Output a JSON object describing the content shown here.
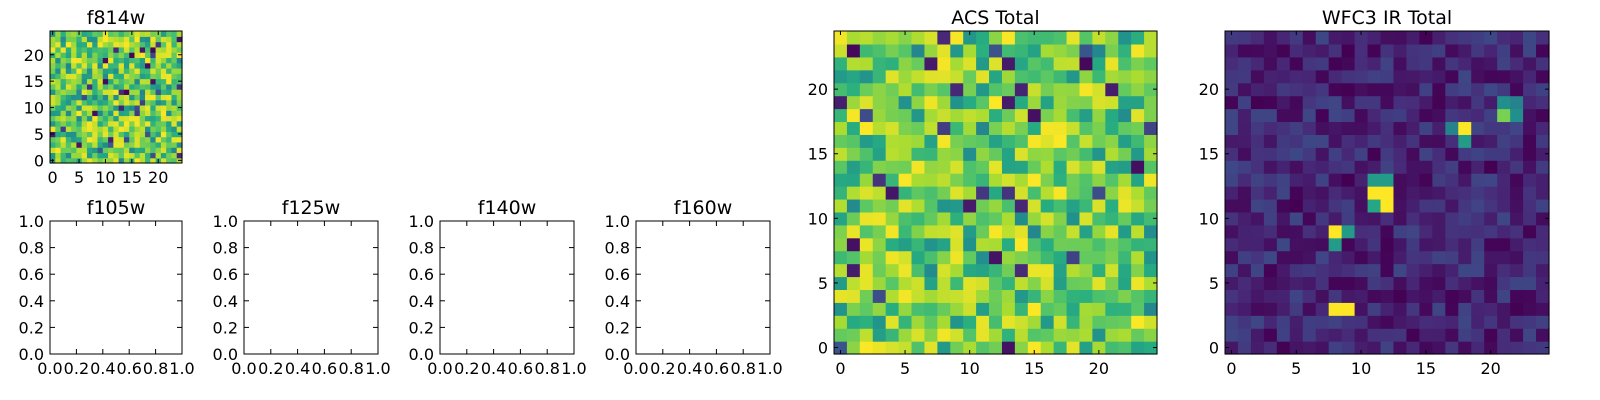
{
  "figure": {
    "background": "#ffffff",
    "colormap": "viridis"
  },
  "chart_data": [
    {
      "id": "f814w",
      "type": "heatmap",
      "title": "f814w",
      "grid_size": 25,
      "color_range": [
        0,
        1
      ],
      "x_ticks": [
        "0",
        "5",
        "10",
        "15",
        "20"
      ],
      "x_tick_values": [
        0,
        5,
        10,
        15,
        20
      ],
      "y_ticks": [
        "0",
        "5",
        "10",
        "15",
        "20"
      ],
      "y_tick_values": [
        0,
        5,
        10,
        15,
        20
      ],
      "xlim": [
        -0.5,
        24.5
      ],
      "ylim": [
        -0.5,
        24.5
      ],
      "values": "random-noise",
      "seed": 814,
      "mode": "noise",
      "note": "per-pixel intensities not individually legible; approximated as uniform-random field"
    },
    {
      "id": "f105w",
      "type": "empty",
      "title": "f105w",
      "x_ticks": [
        "0.0",
        "0.2",
        "0.4",
        "0.6",
        "0.8",
        "1.0"
      ],
      "x_tick_values": [
        0,
        0.2,
        0.4,
        0.6,
        0.8,
        1.0
      ],
      "y_ticks": [
        "0.0",
        "0.2",
        "0.4",
        "0.6",
        "0.8",
        "1.0"
      ],
      "y_tick_values": [
        0,
        0.2,
        0.4,
        0.6,
        0.8,
        1.0
      ],
      "xlim": [
        0,
        1
      ],
      "ylim": [
        0,
        1
      ]
    },
    {
      "id": "f125w",
      "type": "empty",
      "title": "f125w",
      "x_ticks": [
        "0.0",
        "0.2",
        "0.4",
        "0.6",
        "0.8",
        "1.0"
      ],
      "x_tick_values": [
        0,
        0.2,
        0.4,
        0.6,
        0.8,
        1.0
      ],
      "y_ticks": [
        "0.0",
        "0.2",
        "0.4",
        "0.6",
        "0.8",
        "1.0"
      ],
      "y_tick_values": [
        0,
        0.2,
        0.4,
        0.6,
        0.8,
        1.0
      ],
      "xlim": [
        0,
        1
      ],
      "ylim": [
        0,
        1
      ]
    },
    {
      "id": "f140w",
      "type": "empty",
      "title": "f140w",
      "x_ticks": [
        "0.0",
        "0.2",
        "0.4",
        "0.6",
        "0.8",
        "1.0"
      ],
      "x_tick_values": [
        0,
        0.2,
        0.4,
        0.6,
        0.8,
        1.0
      ],
      "y_ticks": [
        "0.0",
        "0.2",
        "0.4",
        "0.6",
        "0.8",
        "1.0"
      ],
      "y_tick_values": [
        0,
        0.2,
        0.4,
        0.6,
        0.8,
        1.0
      ],
      "xlim": [
        0,
        1
      ],
      "ylim": [
        0,
        1
      ]
    },
    {
      "id": "f160w",
      "type": "empty",
      "title": "f160w",
      "x_ticks": [
        "0.0",
        "0.2",
        "0.4",
        "0.6",
        "0.8",
        "1.0"
      ],
      "x_tick_values": [
        0,
        0.2,
        0.4,
        0.6,
        0.8,
        1.0
      ],
      "y_ticks": [
        "0.0",
        "0.2",
        "0.4",
        "0.6",
        "0.8",
        "1.0"
      ],
      "y_tick_values": [
        0,
        0.2,
        0.4,
        0.6,
        0.8,
        1.0
      ],
      "xlim": [
        0,
        1
      ],
      "ylim": [
        0,
        1
      ]
    },
    {
      "id": "acs_total",
      "type": "heatmap",
      "title": "ACS Total",
      "grid_size": 25,
      "color_range": [
        0,
        1
      ],
      "x_ticks": [
        "0",
        "5",
        "10",
        "15",
        "20"
      ],
      "x_tick_values": [
        0,
        5,
        10,
        15,
        20
      ],
      "y_ticks": [
        "0",
        "5",
        "10",
        "15",
        "20"
      ],
      "y_tick_values": [
        0,
        5,
        10,
        15,
        20
      ],
      "xlim": [
        -0.5,
        24.5
      ],
      "ylim": [
        -0.5,
        24.5
      ],
      "values": "random-noise",
      "seed": 2024,
      "mode": "noise",
      "note": "mostly green-yellow noise with scattered dark pixels; approximated"
    },
    {
      "id": "wfc3_ir_total",
      "type": "heatmap",
      "title": "WFC3 IR Total",
      "grid_size": 25,
      "color_range": [
        0,
        1
      ],
      "x_ticks": [
        "0",
        "5",
        "10",
        "15",
        "20"
      ],
      "x_tick_values": [
        0,
        5,
        10,
        15,
        20
      ],
      "y_ticks": [
        "0",
        "5",
        "10",
        "15",
        "20"
      ],
      "y_tick_values": [
        0,
        5,
        10,
        15,
        20
      ],
      "xlim": [
        -0.5,
        24.5
      ],
      "ylim": [
        -0.5,
        24.5
      ],
      "values": "low-background-with-sources",
      "seed": 160,
      "mode": "sources",
      "background_range": [
        0.0,
        0.22
      ],
      "sources": [
        {
          "x": 8,
          "y": 3,
          "value": 1.0
        },
        {
          "x": 9,
          "y": 3,
          "value": 1.0
        },
        {
          "x": 8,
          "y": 9,
          "value": 1.0
        },
        {
          "x": 9,
          "y": 9,
          "value": 0.55
        },
        {
          "x": 8,
          "y": 8,
          "value": 0.55
        },
        {
          "x": 11,
          "y": 13,
          "value": 0.55
        },
        {
          "x": 12,
          "y": 13,
          "value": 0.55
        },
        {
          "x": 11,
          "y": 12,
          "value": 1.0
        },
        {
          "x": 12,
          "y": 12,
          "value": 1.0
        },
        {
          "x": 11,
          "y": 11,
          "value": 0.6
        },
        {
          "x": 12,
          "y": 11,
          "value": 1.0
        },
        {
          "x": 18,
          "y": 17,
          "value": 1.0
        },
        {
          "x": 17,
          "y": 17,
          "value": 0.45
        },
        {
          "x": 18,
          "y": 16,
          "value": 0.55
        },
        {
          "x": 21,
          "y": 19,
          "value": 0.5
        },
        {
          "x": 22,
          "y": 19,
          "value": 0.45
        },
        {
          "x": 21,
          "y": 18,
          "value": 0.8
        },
        {
          "x": 22,
          "y": 18,
          "value": 0.5
        }
      ]
    }
  ]
}
